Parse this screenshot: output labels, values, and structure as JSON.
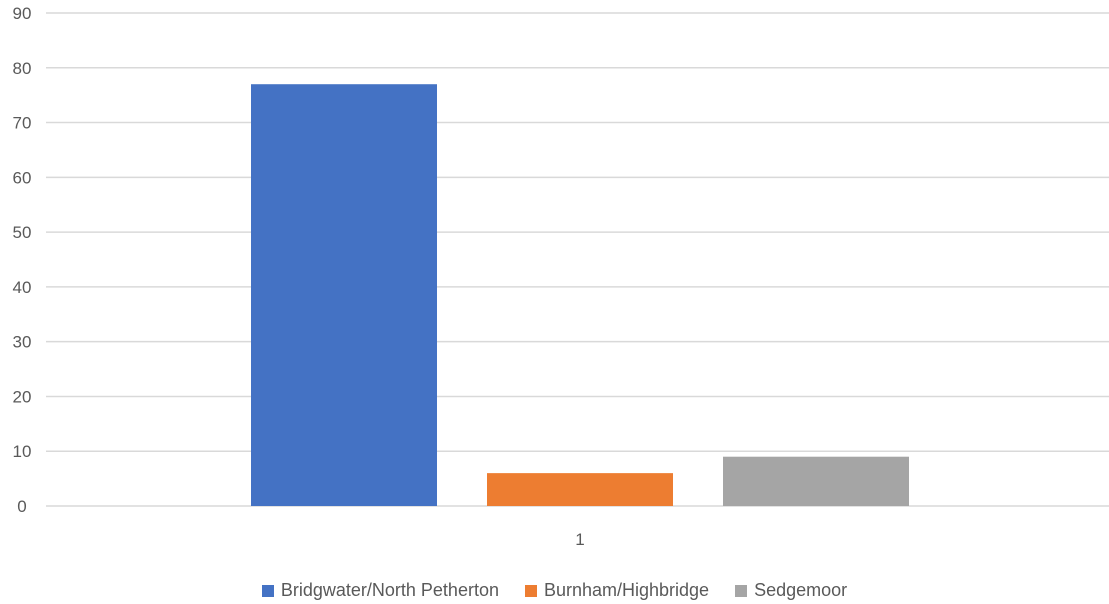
{
  "chart_data": {
    "type": "bar",
    "categories": [
      "1"
    ],
    "series": [
      {
        "name": "Bridgwater/North Petherton",
        "values": [
          77
        ],
        "color": "#4472C4"
      },
      {
        "name": "Burnham/Highbridge",
        "values": [
          6
        ],
        "color": "#ED7D31"
      },
      {
        "name": "Sedgemoor",
        "values": [
          9
        ],
        "color": "#A5A5A5"
      }
    ],
    "ylim": [
      0,
      90
    ],
    "yticks": [
      0,
      10,
      20,
      30,
      40,
      50,
      60,
      70,
      80,
      90
    ],
    "grid": true,
    "gridline_color": "#D9D9D9",
    "legend_position": "bottom",
    "title": "",
    "xlabel": "",
    "ylabel": ""
  }
}
